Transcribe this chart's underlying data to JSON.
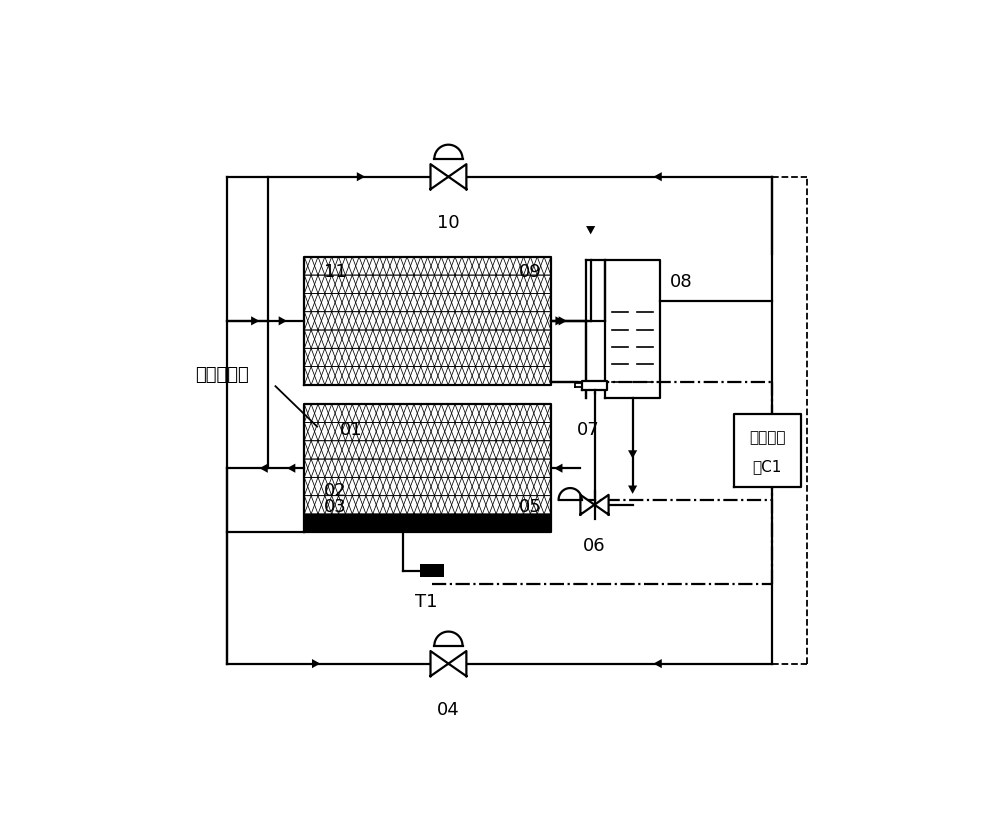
{
  "bg_color": "#ffffff",
  "lw": 1.6,
  "tlw": 0.55,
  "upper_hx": [
    0.175,
    0.555,
    0.385,
    0.2
  ],
  "lower_hx": [
    0.175,
    0.325,
    0.385,
    0.2
  ],
  "acc": [
    0.645,
    0.535,
    0.085,
    0.215
  ],
  "ctrl": [
    0.845,
    0.395,
    0.105,
    0.115
  ],
  "n_hx_cols": 18,
  "n_hx_rows": 7,
  "label_font": 13
}
